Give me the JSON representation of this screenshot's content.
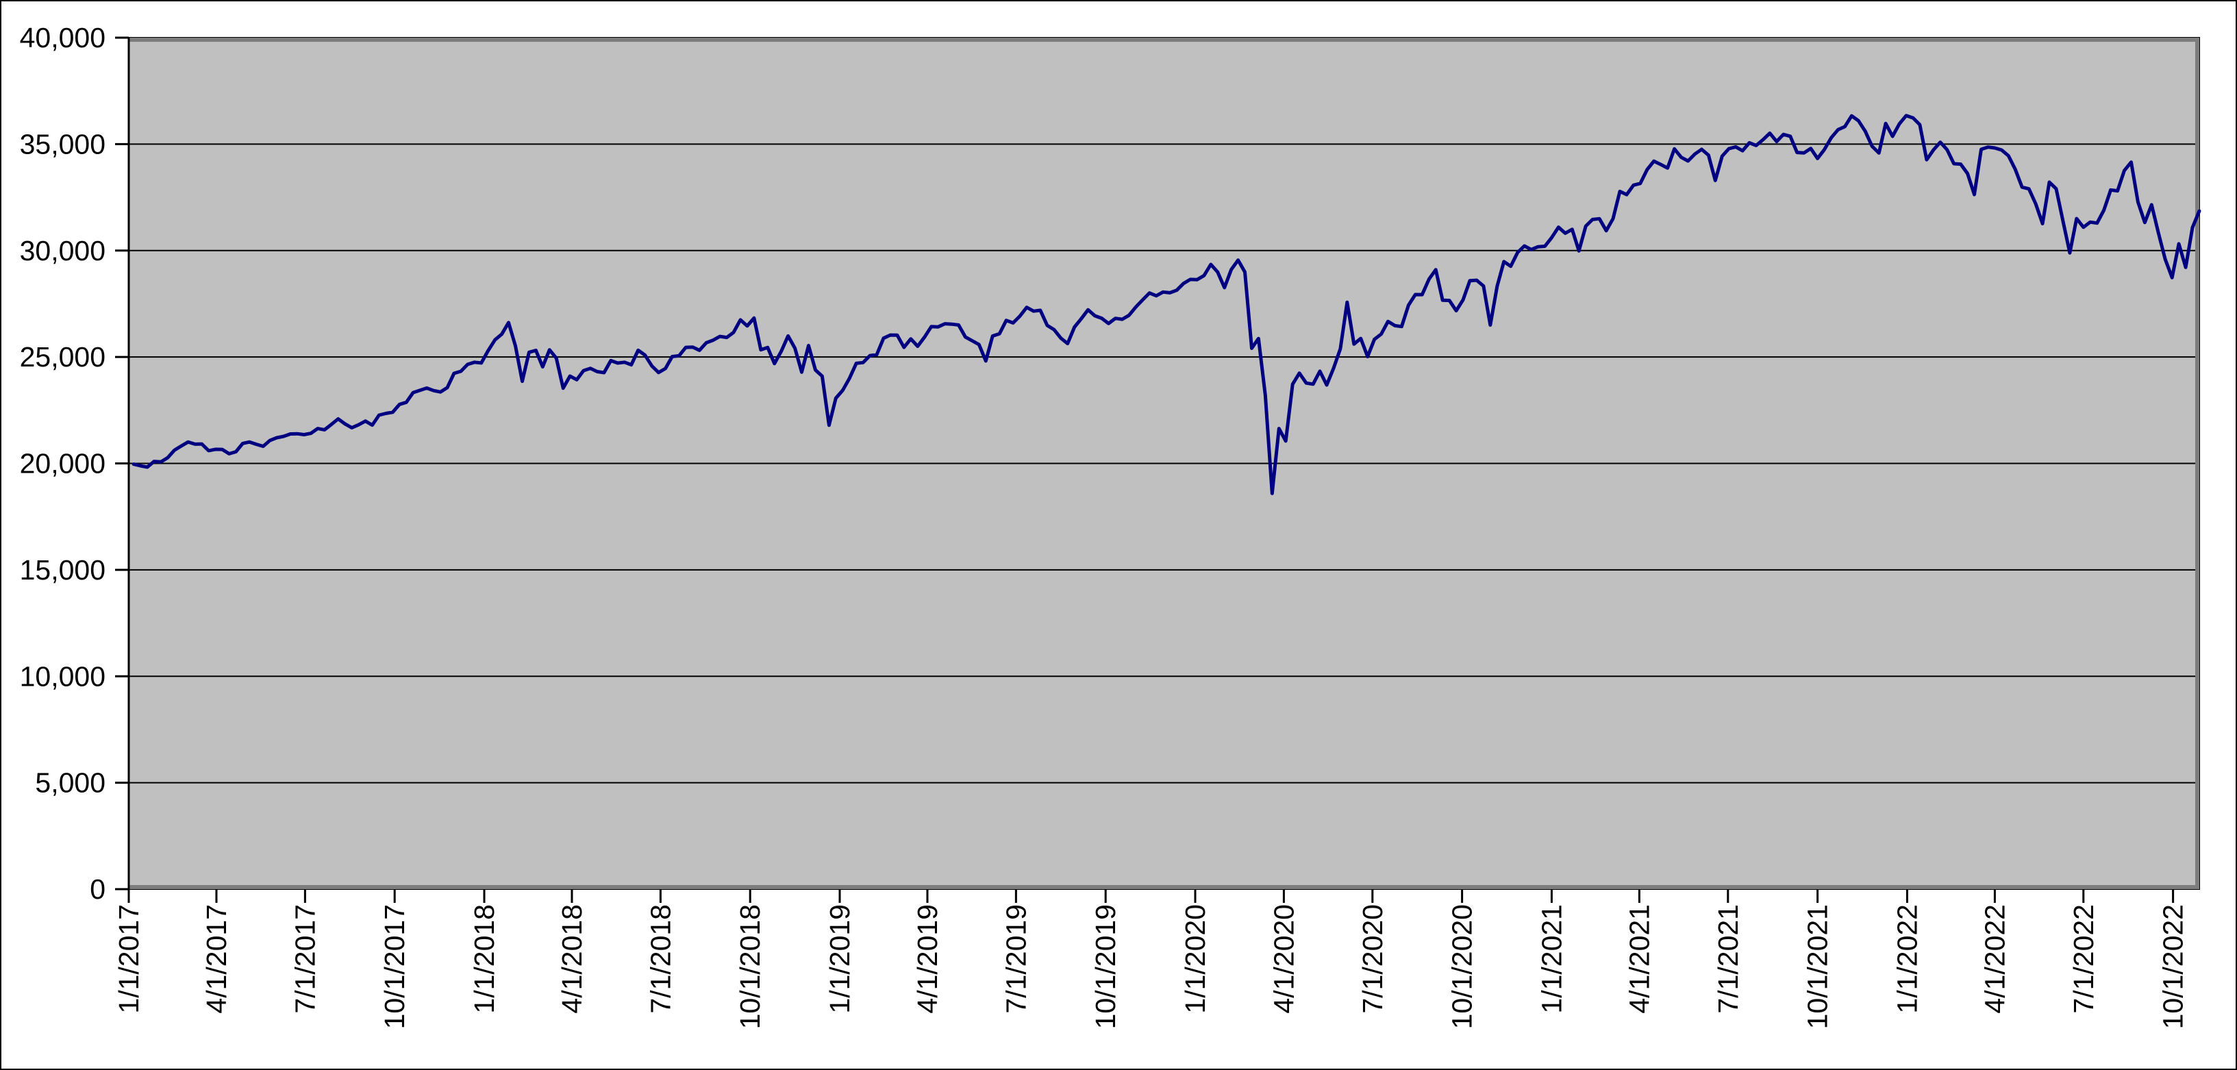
{
  "figure": {
    "background": "#FFFFFF",
    "border_color": "#000000",
    "text_color": "#000000"
  },
  "chart_data": {
    "type": "line",
    "title": "",
    "plot": {
      "fill": "#C0C0C0",
      "gridline_color": "#000000",
      "shadow_color": "#7D7D7D",
      "grid": "horizontal-only"
    },
    "y_axis": {
      "range": [
        0,
        40000
      ],
      "tick_step": 5000,
      "ticks": [
        0,
        5000,
        10000,
        15000,
        20000,
        25000,
        30000,
        35000,
        40000
      ],
      "tick_labels": [
        "0",
        "5,000",
        "10,000",
        "15,000",
        "20,000",
        "25,000",
        "30,000",
        "35,000",
        "40,000"
      ]
    },
    "x_axis": {
      "range_days": [
        0,
        2126
      ],
      "label_rotation_deg": -90,
      "ticks": [
        {
          "label": "1/1/2017",
          "d": 0
        },
        {
          "label": "4/1/2017",
          "d": 90
        },
        {
          "label": "7/1/2017",
          "d": 181
        },
        {
          "label": "10/1/2017",
          "d": 273
        },
        {
          "label": "1/1/2018",
          "d": 365
        },
        {
          "label": "4/1/2018",
          "d": 455
        },
        {
          "label": "7/1/2018",
          "d": 546
        },
        {
          "label": "10/1/2018",
          "d": 638
        },
        {
          "label": "1/1/2019",
          "d": 730
        },
        {
          "label": "4/1/2019",
          "d": 820
        },
        {
          "label": "7/1/2019",
          "d": 911
        },
        {
          "label": "10/1/2019",
          "d": 1003
        },
        {
          "label": "1/1/2020",
          "d": 1095
        },
        {
          "label": "4/1/2020",
          "d": 1186
        },
        {
          "label": "7/1/2020",
          "d": 1277
        },
        {
          "label": "10/1/2020",
          "d": 1369
        },
        {
          "label": "1/1/2021",
          "d": 1461
        },
        {
          "label": "4/1/2021",
          "d": 1551
        },
        {
          "label": "7/1/2021",
          "d": 1642
        },
        {
          "label": "10/1/2021",
          "d": 1734
        },
        {
          "label": "1/1/2022",
          "d": 1826
        },
        {
          "label": "4/1/2022",
          "d": 1916
        },
        {
          "label": "7/1/2022",
          "d": 2007
        },
        {
          "label": "10/1/2022",
          "d": 2099
        }
      ]
    },
    "series": [
      {
        "color": "#000080",
        "line_width": 5,
        "start_day_offset": 5,
        "step_days": 7,
        "values": [
          19964,
          19886,
          19827,
          20094,
          20071,
          20269,
          20624,
          20822,
          21006,
          20903,
          20915,
          20597,
          20663,
          20656,
          20453,
          20548,
          20941,
          21007,
          20897,
          20805,
          21080,
          21206,
          21272,
          21384,
          21395,
          21350,
          21414,
          21638,
          21580,
          21830,
          22093,
          21858,
          21675,
          21814,
          21988,
          21798,
          22268,
          22350,
          22405,
          22774,
          22872,
          23329,
          23434,
          23539,
          23422,
          23358,
          23558,
          24232,
          24329,
          24652,
          24754,
          24719,
          25296,
          25803,
          26072,
          26617,
          25521,
          23860,
          25219,
          25310,
          24538,
          25336,
          24947,
          23533,
          24103,
          23933,
          24360,
          24463,
          24311,
          24263,
          24831,
          24715,
          24753,
          24635,
          25317,
          25090,
          24581,
          24271,
          24456,
          25019,
          25058,
          25451,
          25463,
          25313,
          25669,
          25790,
          25965,
          25917,
          26155,
          26744,
          26458,
          26828,
          25340,
          25444,
          24688,
          25271,
          25989,
          25413,
          24286,
          25538,
          24389,
          24101,
          21792,
          23062,
          23433,
          23996,
          24706,
          24737,
          25064,
          25106,
          25883,
          26032,
          26026,
          25450,
          25849,
          25502,
          25929,
          26425,
          26412,
          26560,
          26543,
          26505,
          25942,
          25764,
          25586,
          24815,
          25984,
          26090,
          26719,
          26600,
          26922,
          27332,
          27154,
          27192,
          26485,
          26287,
          25886,
          25629,
          26403,
          26797,
          27219,
          26935,
          26820,
          26574,
          26817,
          26770,
          26958,
          27347,
          27681,
          28005,
          27876,
          28051,
          28015,
          28135,
          28455,
          28645,
          28635,
          28824,
          29348,
          28990,
          28256,
          29103,
          29551,
          28992,
          25409,
          25865,
          23186,
          18592,
          21637,
          21053,
          23719,
          24242,
          23775,
          23724,
          24331,
          23685,
          24465,
          25383,
          27572,
          25606,
          25871,
          25016,
          25827,
          26075,
          26672,
          26470,
          26428,
          27433,
          27931,
          27930,
          28654,
          29100,
          27666,
          27657,
          27174,
          27683,
          28587,
          28606,
          28336,
          26502,
          28323,
          29480,
          29263,
          29910,
          30218,
          30046,
          30179,
          30200,
          30606,
          31098,
          30814,
          30997,
          29983,
          31148,
          31458,
          31494,
          30932,
          31496,
          32779,
          32628,
          33073,
          33153,
          33801,
          34201,
          34043,
          33875,
          34778,
          34382,
          34208,
          34529,
          34756,
          34480,
          33290,
          34434,
          34786,
          34870,
          34688,
          35062,
          34935,
          35209,
          35515,
          35120,
          35456,
          35369,
          34608,
          34585,
          34798,
          34326,
          34746,
          35295,
          35677,
          35820,
          36328,
          36100,
          35602,
          34899,
          34580,
          35971,
          35365,
          35950,
          36338,
          36232,
          35912,
          34265,
          34725,
          35090,
          34738,
          34079,
          34059,
          33615,
          32632,
          34755,
          34861,
          34818,
          34721,
          34451,
          33811,
          32977,
          32899,
          32197,
          31262,
          33213,
          32900,
          31393,
          29889,
          31501,
          31097,
          31338,
          31288,
          31899,
          32845,
          32803,
          33761,
          34152,
          32283,
          31318,
          32152,
          30822,
          29590,
          28726,
          30316,
          29211,
          31083,
          31860
        ]
      }
    ]
  }
}
